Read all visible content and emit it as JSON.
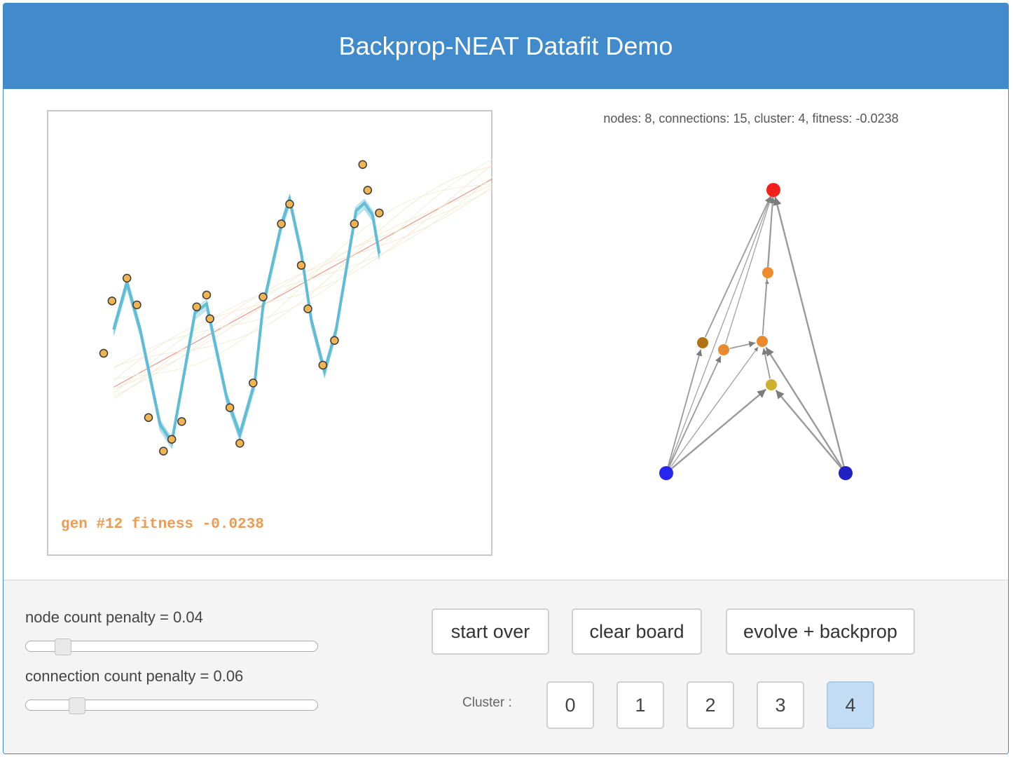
{
  "header": {
    "title": "Backprop-NEAT Datafit Demo"
  },
  "plot": {
    "gen_label": "gen #12 fitness -0.0238",
    "points": [
      [
        -1.0,
        -0.05
      ],
      [
        -0.95,
        0.48
      ],
      [
        -0.86,
        0.71
      ],
      [
        -0.8,
        0.44
      ],
      [
        -0.73,
        -0.7
      ],
      [
        -0.64,
        -1.04
      ],
      [
        -0.59,
        -0.92
      ],
      [
        -0.53,
        -0.74
      ],
      [
        -0.44,
        0.42
      ],
      [
        -0.38,
        0.54
      ],
      [
        -0.36,
        0.3
      ],
      [
        -0.24,
        -0.6
      ],
      [
        -0.18,
        -0.96
      ],
      [
        -0.1,
        -0.35
      ],
      [
        -0.04,
        0.52
      ],
      [
        0.07,
        1.26
      ],
      [
        0.12,
        1.46
      ],
      [
        0.19,
        0.84
      ],
      [
        0.23,
        0.4
      ],
      [
        0.32,
        -0.17
      ],
      [
        0.39,
        0.08
      ],
      [
        0.51,
        1.26
      ],
      [
        0.56,
        1.86
      ],
      [
        0.59,
        1.6
      ],
      [
        0.66,
        1.37
      ]
    ],
    "colors": {
      "point_fill": "#f2b450",
      "point_stroke": "#3a3a3a",
      "fit_line": "#5ebcd6",
      "linear_fit": "#f08878",
      "label": "#ec9b52"
    }
  },
  "network": {
    "stats": "nodes: 8, connections: 15, cluster: 4, fitness: -0.0238",
    "nodes": [
      {
        "id": "in1",
        "color": "#2626f0"
      },
      {
        "id": "in2",
        "color": "#2020c4"
      },
      {
        "id": "out",
        "color": "#f2221a"
      },
      {
        "id": "h1",
        "color": "#ee8c2e"
      },
      {
        "id": "h2",
        "color": "#ea8a2e"
      },
      {
        "id": "h3",
        "color": "#ea8a2e"
      },
      {
        "id": "h4",
        "color": "#b27214"
      },
      {
        "id": "h5",
        "color": "#cfb02e"
      }
    ],
    "edges": [
      [
        "in1",
        "out"
      ],
      [
        "in1",
        "h4"
      ],
      [
        "in1",
        "h2"
      ],
      [
        "in1",
        "h3"
      ],
      [
        "in1",
        "h5"
      ],
      [
        "in2",
        "out"
      ],
      [
        "in2",
        "h3"
      ],
      [
        "in2",
        "h5"
      ],
      [
        "h2",
        "h3"
      ],
      [
        "h3",
        "h1"
      ],
      [
        "h1",
        "out"
      ],
      [
        "h4",
        "out"
      ],
      [
        "h2",
        "out"
      ],
      [
        "h5",
        "h3"
      ],
      [
        "h3",
        "out"
      ]
    ]
  },
  "controls": {
    "node_penalty_label": "node count penalty = 0.04",
    "node_penalty_value": 0.04,
    "conn_penalty_label": "connection count penalty = 0.06",
    "conn_penalty_value": 0.06,
    "slider_max": 0.4,
    "buttons": {
      "start_over": "start over",
      "clear_board": "clear board",
      "evolve": "evolve + backprop"
    },
    "cluster_label": "Cluster :",
    "clusters": [
      "0",
      "1",
      "2",
      "3",
      "4"
    ],
    "selected_cluster": "4"
  }
}
